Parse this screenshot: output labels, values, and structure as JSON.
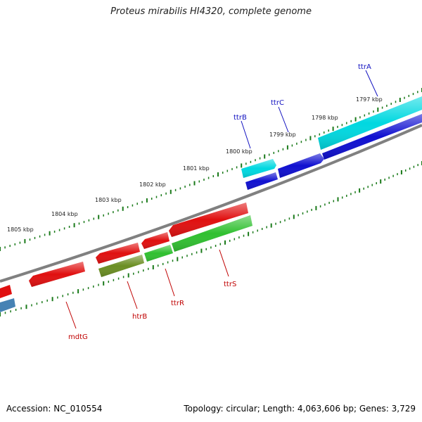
{
  "title": "Proteus mirabilis HI4320, complete genome",
  "footer": {
    "accession": "Accession: NC_010554",
    "summary": "Topology: circular; Length: 4,063,606 bp; Genes: 3,729"
  },
  "ticks": [
    {
      "label": "1797 kbp"
    },
    {
      "label": "1798 kbp"
    },
    {
      "label": "1799 kbp"
    },
    {
      "label": "1800 kbp"
    },
    {
      "label": "1801 kbp"
    },
    {
      "label": "1802 kbp"
    },
    {
      "label": "1803 kbp"
    },
    {
      "label": "1804 kbp"
    },
    {
      "label": "1805 kbp"
    }
  ],
  "genes": [
    {
      "name": "ttrA",
      "strand": "forward",
      "color": "#00d8e0"
    },
    {
      "name": "ttrC",
      "strand": "forward",
      "color": "#1010d0"
    },
    {
      "name": "ttrB",
      "strand": "forward",
      "color": "#00d8e0"
    },
    {
      "name": "ttrS",
      "strand": "reverse",
      "color": "#e01010"
    },
    {
      "name": "ttrR",
      "strand": "reverse",
      "color": "#30c030"
    },
    {
      "name": "htrB",
      "strand": "reverse",
      "color": "#6b8e23"
    },
    {
      "name": "mdtG",
      "strand": "reverse",
      "color": "#e01010"
    }
  ],
  "colors": {
    "backbone": "#808080",
    "tick": "#1a7a1a",
    "forward_label": "#1010c0",
    "reverse_label": "#c00000"
  }
}
